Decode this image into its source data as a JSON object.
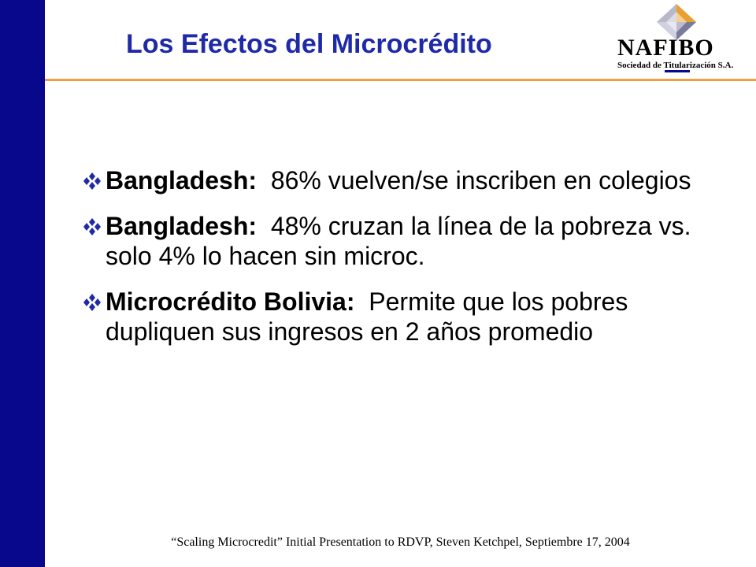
{
  "slide": {
    "title": "Los Efectos del Microcrédito",
    "footer": "“Scaling Microcredit” Initial Presentation to RDVP, Steven Ketchpel, Septiembre 17, 2004"
  },
  "logo": {
    "name": "NAFIBO",
    "subtitle": "Sociedad de Titularización S.A."
  },
  "bullets": [
    {
      "lead": "Bangladesh:",
      "text": "86% vuelven/se inscriben en colegios"
    },
    {
      "lead": "Bangladesh:",
      "text": "48% cruzan la línea de la pobreza vs. solo 4% lo hacen sin microc."
    },
    {
      "lead": "Microcrédito Bolivia:",
      "text": "Permite que los pobres dupliquen sus ingresos en 2 años promedio"
    }
  ],
  "colors": {
    "sidebar": "#08088c",
    "title": "#1f2aa8",
    "title_rule": "#f0a040",
    "bullet_icon": "#1f2aa8"
  },
  "icons": {
    "bullet": "four-diamond-bullet-icon",
    "logo": "diamond-logo-icon"
  }
}
